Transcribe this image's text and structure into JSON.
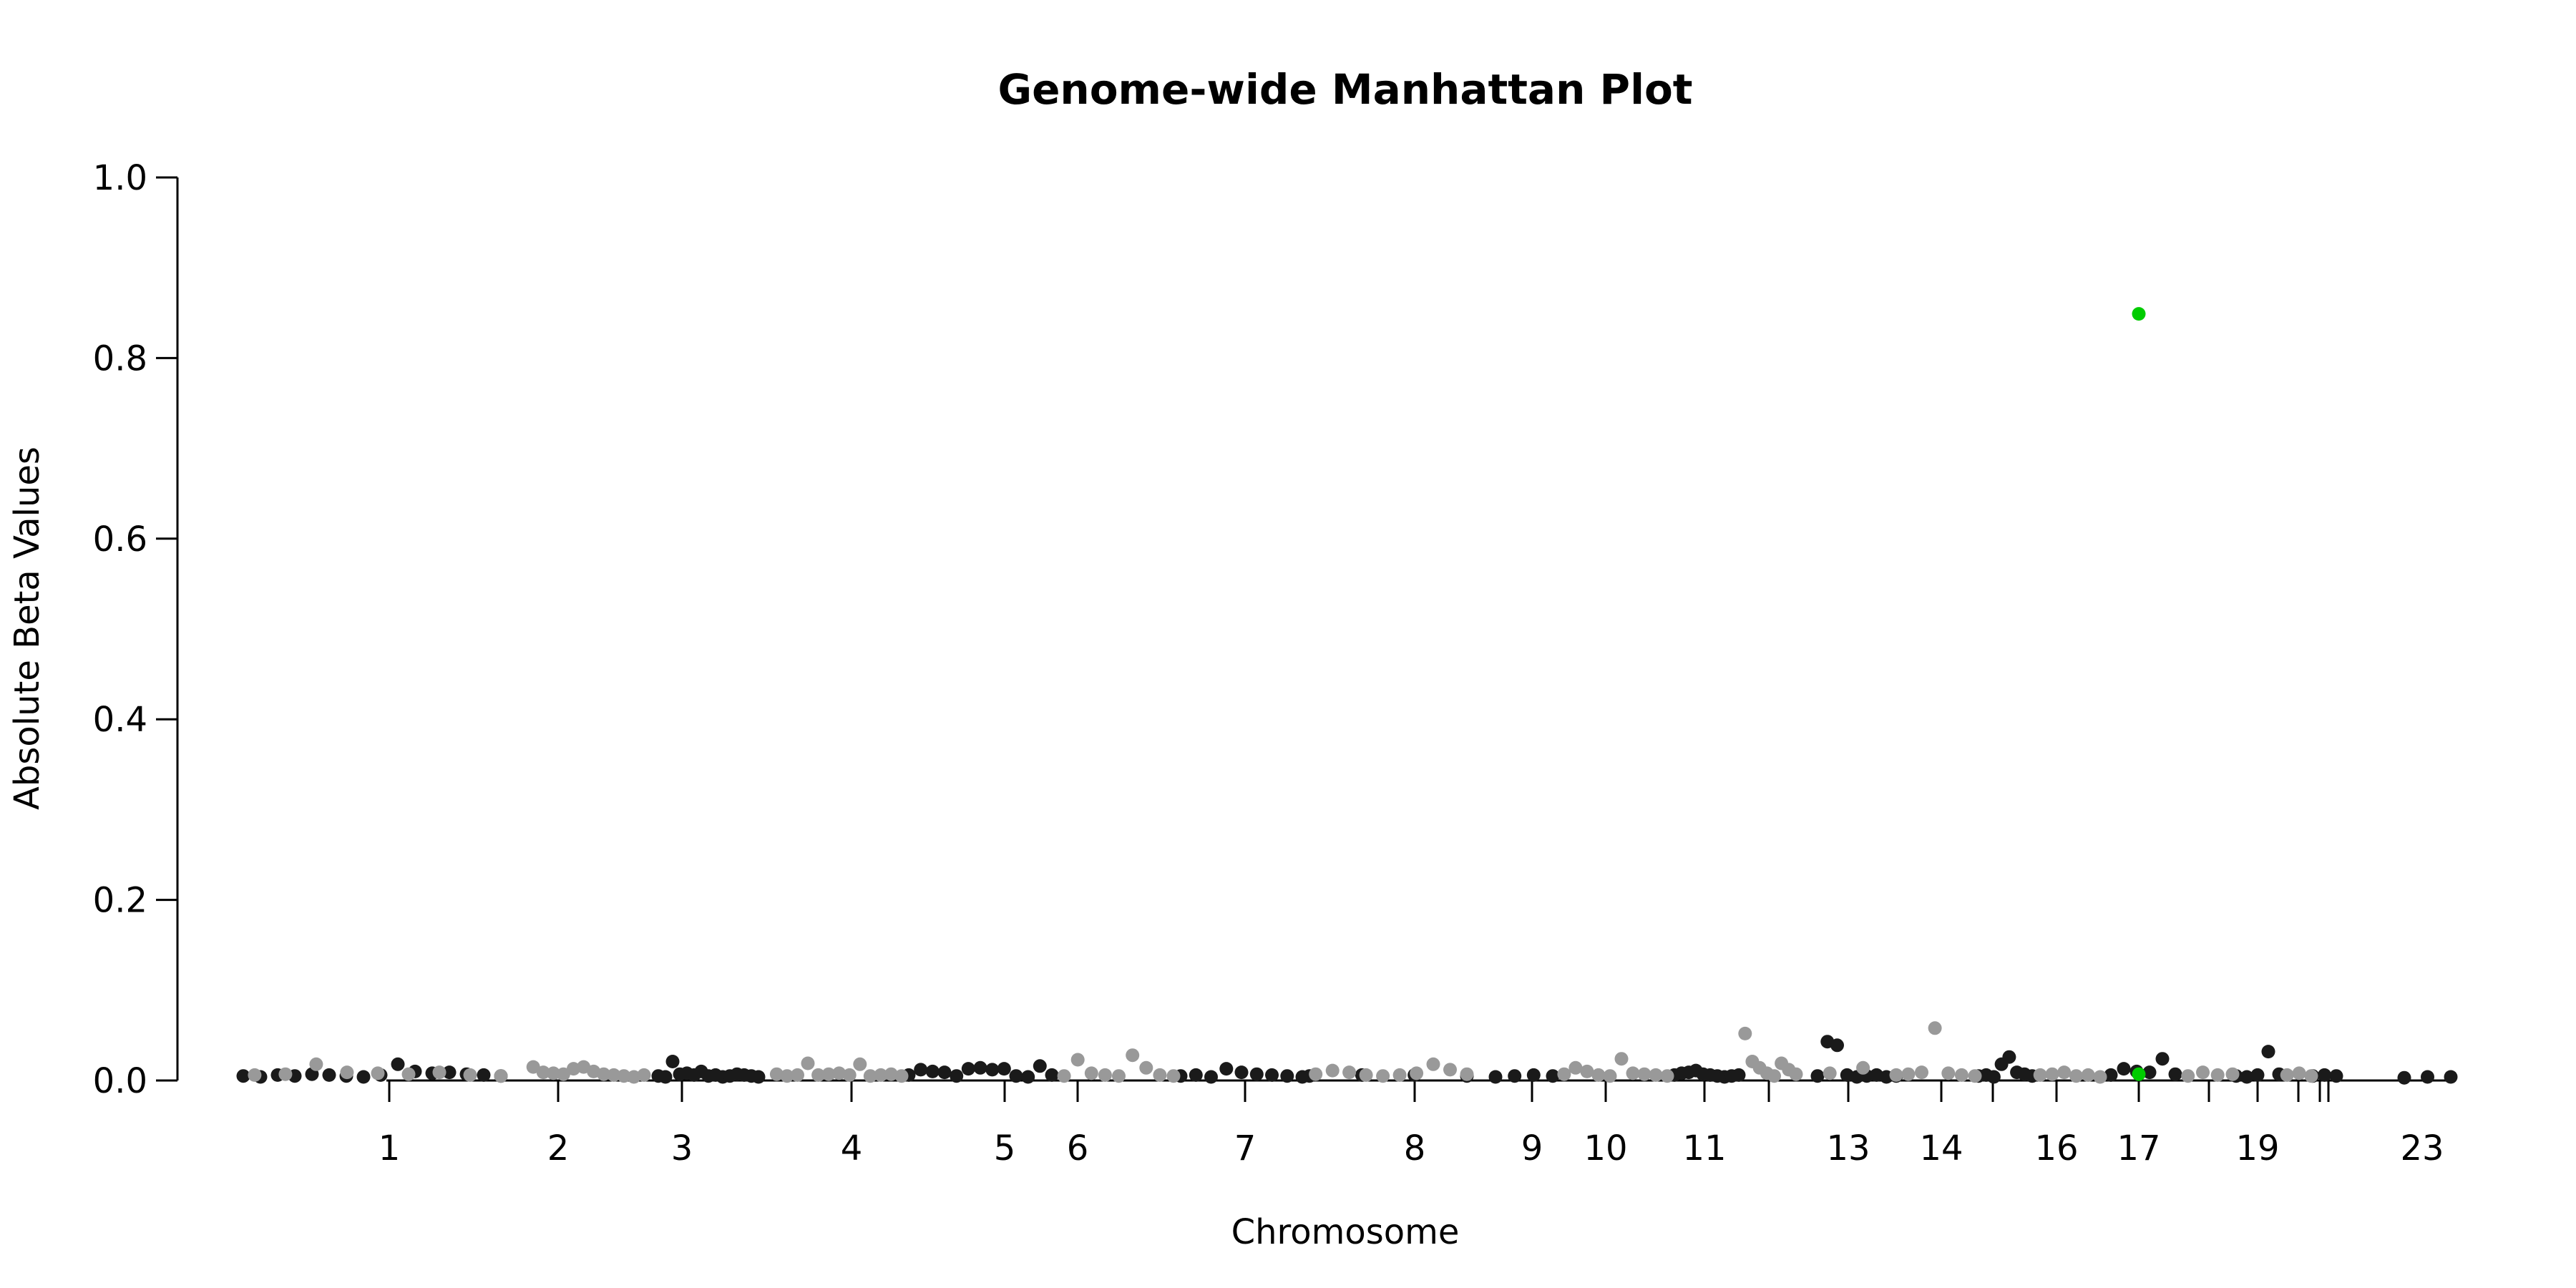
{
  "chart_data": {
    "type": "scatter",
    "title": "Genome-wide Manhattan Plot",
    "xlabel": "Chromosome",
    "ylabel": "Absolute Beta Values",
    "ylim": [
      0,
      1.0
    ],
    "y_ticks": [
      "0.0",
      "0.2",
      "0.4",
      "0.6",
      "0.8",
      "1.0"
    ],
    "x_ticks": [
      "1",
      "2",
      "3",
      "4",
      "5",
      "6",
      "7",
      "8",
      "9",
      "10",
      "11",
      "13",
      "14",
      "16",
      "17",
      "19",
      "23"
    ],
    "x_ticks_unlabeled": [
      "12",
      "15",
      "18",
      "20",
      "21",
      "22"
    ],
    "colors": {
      "dark": "#1a1a1a",
      "light": "#999999",
      "highlight": "#00cc00"
    },
    "grid": false,
    "series": [
      {
        "color_key": "dark",
        "points": [
          [
            "1",
            0.005
          ],
          [
            "1",
            0.004
          ],
          [
            "1",
            0.006
          ],
          [
            "1",
            0.005
          ],
          [
            "1",
            0.007
          ],
          [
            "1",
            0.006
          ],
          [
            "1",
            0.005
          ],
          [
            "1",
            0.004
          ],
          [
            "1",
            0.006
          ],
          [
            "1",
            0.018
          ],
          [
            "1",
            0.01
          ],
          [
            "1",
            0.008
          ],
          [
            "1",
            0.009
          ],
          [
            "1",
            0.007
          ],
          [
            "1",
            0.006
          ],
          [
            "1",
            0.005
          ],
          [
            "3",
            0.005
          ],
          [
            "3",
            0.004
          ],
          [
            "3",
            0.021
          ],
          [
            "3",
            0.007
          ],
          [
            "3",
            0.008
          ],
          [
            "3",
            0.006
          ],
          [
            "3",
            0.01
          ],
          [
            "3",
            0.005
          ],
          [
            "3",
            0.006
          ],
          [
            "3",
            0.004
          ],
          [
            "3",
            0.005
          ],
          [
            "3",
            0.007
          ],
          [
            "3",
            0.006
          ],
          [
            "3",
            0.005
          ],
          [
            "3",
            0.004
          ],
          [
            "5",
            0.006
          ],
          [
            "5",
            0.012
          ],
          [
            "5",
            0.01
          ],
          [
            "5",
            0.009
          ],
          [
            "5",
            0.005
          ],
          [
            "5",
            0.013
          ],
          [
            "5",
            0.014
          ],
          [
            "5",
            0.012
          ],
          [
            "5",
            0.013
          ],
          [
            "5",
            0.005
          ],
          [
            "5",
            0.004
          ],
          [
            "5",
            0.016
          ],
          [
            "5",
            0.006
          ],
          [
            "7",
            0.005
          ],
          [
            "7",
            0.006
          ],
          [
            "7",
            0.004
          ],
          [
            "7",
            0.013
          ],
          [
            "7",
            0.009
          ],
          [
            "7",
            0.007
          ],
          [
            "7",
            0.006
          ],
          [
            "7",
            0.005
          ],
          [
            "7",
            0.004
          ],
          [
            "8",
            0.005
          ],
          [
            "8",
            0.006
          ],
          [
            "8",
            0.006
          ],
          [
            "8",
            0.005
          ],
          [
            "9",
            0.004
          ],
          [
            "9",
            0.005
          ],
          [
            "9",
            0.006
          ],
          [
            "9",
            0.005
          ],
          [
            "11",
            0.006
          ],
          [
            "11",
            0.008
          ],
          [
            "11",
            0.009
          ],
          [
            "11",
            0.011
          ],
          [
            "11",
            0.007
          ],
          [
            "11",
            0.006
          ],
          [
            "11",
            0.005
          ],
          [
            "11",
            0.004
          ],
          [
            "11",
            0.005
          ],
          [
            "11",
            0.006
          ],
          [
            "13",
            0.005
          ],
          [
            "13",
            0.043
          ],
          [
            "13",
            0.039
          ],
          [
            "13",
            0.006
          ],
          [
            "13",
            0.004
          ],
          [
            "13",
            0.005
          ],
          [
            "13",
            0.006
          ],
          [
            "13",
            0.004
          ],
          [
            "13",
            0.005
          ],
          [
            "15",
            0.005
          ],
          [
            "15",
            0.006
          ],
          [
            "15",
            0.004
          ],
          [
            "15",
            0.018
          ],
          [
            "15",
            0.026
          ],
          [
            "15",
            0.009
          ],
          [
            "15",
            0.007
          ],
          [
            "15",
            0.005
          ],
          [
            "17",
            0.006
          ],
          [
            "17",
            0.013
          ],
          [
            "17",
            0.01
          ],
          [
            "17",
            0.009
          ],
          [
            "17",
            0.024
          ],
          [
            "17",
            0.007
          ],
          [
            "19",
            0.005
          ],
          [
            "19",
            0.004
          ],
          [
            "19",
            0.006
          ],
          [
            "19",
            0.032
          ],
          [
            "19",
            0.007
          ],
          [
            "21",
            0.005
          ],
          [
            "21",
            0.006
          ],
          [
            "21",
            0.005
          ],
          [
            "23",
            0.003
          ],
          [
            "23",
            0.004
          ],
          [
            "23",
            0.004
          ]
        ]
      },
      {
        "color_key": "light",
        "points": [
          [
            "1",
            0.006
          ],
          [
            "1",
            0.007
          ],
          [
            "1",
            0.018
          ],
          [
            "1",
            0.009
          ],
          [
            "1",
            0.008
          ],
          [
            "1",
            0.007
          ],
          [
            "1",
            0.009
          ],
          [
            "1",
            0.006
          ],
          [
            "1",
            0.005
          ],
          [
            "2",
            0.015
          ],
          [
            "2",
            0.009
          ],
          [
            "2",
            0.008
          ],
          [
            "2",
            0.007
          ],
          [
            "2",
            0.013
          ],
          [
            "2",
            0.015
          ],
          [
            "2",
            0.01
          ],
          [
            "2",
            0.007
          ],
          [
            "2",
            0.006
          ],
          [
            "2",
            0.005
          ],
          [
            "2",
            0.004
          ],
          [
            "2",
            0.006
          ],
          [
            "4",
            0.007
          ],
          [
            "4",
            0.005
          ],
          [
            "4",
            0.006
          ],
          [
            "4",
            0.019
          ],
          [
            "4",
            0.006
          ],
          [
            "4",
            0.007
          ],
          [
            "4",
            0.008
          ],
          [
            "4",
            0.006
          ],
          [
            "4",
            0.018
          ],
          [
            "4",
            0.005
          ],
          [
            "4",
            0.006
          ],
          [
            "4",
            0.007
          ],
          [
            "4",
            0.005
          ],
          [
            "6",
            0.005
          ],
          [
            "6",
            0.023
          ],
          [
            "6",
            0.008
          ],
          [
            "6",
            0.006
          ],
          [
            "6",
            0.005
          ],
          [
            "6",
            0.028
          ],
          [
            "6",
            0.014
          ],
          [
            "6",
            0.006
          ],
          [
            "6",
            0.005
          ],
          [
            "8",
            0.007
          ],
          [
            "8",
            0.011
          ],
          [
            "8",
            0.009
          ],
          [
            "8",
            0.006
          ],
          [
            "8",
            0.005
          ],
          [
            "8",
            0.006
          ],
          [
            "8",
            0.008
          ],
          [
            "8",
            0.018
          ],
          [
            "8",
            0.012
          ],
          [
            "8",
            0.007
          ],
          [
            "10",
            0.007
          ],
          [
            "10",
            0.014
          ],
          [
            "10",
            0.01
          ],
          [
            "10",
            0.006
          ],
          [
            "10",
            0.005
          ],
          [
            "10",
            0.024
          ],
          [
            "10",
            0.008
          ],
          [
            "10",
            0.007
          ],
          [
            "10",
            0.006
          ],
          [
            "10",
            0.005
          ],
          [
            "12",
            0.052
          ],
          [
            "12",
            0.021
          ],
          [
            "12",
            0.014
          ],
          [
            "12",
            0.008
          ],
          [
            "12",
            0.005
          ],
          [
            "12",
            0.019
          ],
          [
            "12",
            0.012
          ],
          [
            "12",
            0.007
          ],
          [
            "13",
            0.008
          ],
          [
            "13",
            0.014
          ],
          [
            "13",
            0.006
          ],
          [
            "14",
            0.007
          ],
          [
            "14",
            0.009
          ],
          [
            "14",
            0.058
          ],
          [
            "14",
            0.008
          ],
          [
            "14",
            0.006
          ],
          [
            "14",
            0.005
          ],
          [
            "16",
            0.006
          ],
          [
            "16",
            0.007
          ],
          [
            "16",
            0.009
          ],
          [
            "16",
            0.005
          ],
          [
            "16",
            0.006
          ],
          [
            "16",
            0.004
          ],
          [
            "18",
            0.005
          ],
          [
            "18",
            0.009
          ],
          [
            "18",
            0.006
          ],
          [
            "18",
            0.007
          ],
          [
            "20",
            0.006
          ],
          [
            "20",
            0.008
          ],
          [
            "20",
            0.005
          ]
        ]
      },
      {
        "color_key": "highlight",
        "points": [
          [
            "17",
            0.849
          ],
          [
            "17",
            0.007
          ]
        ]
      }
    ]
  }
}
